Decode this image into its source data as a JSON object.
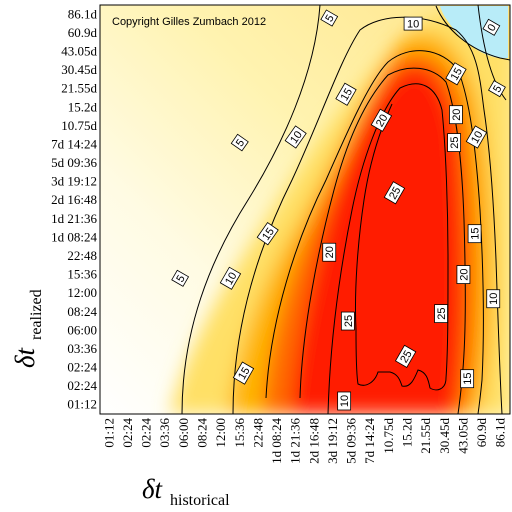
{
  "chart_data": {
    "type": "contour",
    "copyright": "Copyright Gilles Zumbach 2012",
    "x_label": {
      "symbol": "δt",
      "subscript": "historical"
    },
    "y_label": {
      "symbol": "δt",
      "subscript": "realized"
    },
    "x_ticks": [
      "01:12",
      "02:24",
      "02:24",
      "03:36",
      "06:00",
      "08:24",
      "12:00",
      "15:36",
      "22:48",
      "1d 08:24",
      "1d 21:36",
      "2d 16:48",
      "3d 19:12",
      "5d 09:36",
      "7d 14:24",
      "10.75d",
      "15.2d",
      "21.55d",
      "30.45d",
      "43.05d",
      "60.9d",
      "86.1d"
    ],
    "y_ticks": [
      "86.1d",
      "60.9d",
      "43.05d",
      "30.45d",
      "21.55d",
      "15.2d",
      "10.75d",
      "7d 14:24",
      "5d 09:36",
      "3d 19:12",
      "2d 16:48",
      "1d 21:36",
      "1d 08:24",
      "22:48",
      "15:36",
      "12:00",
      "08:24",
      "06:00",
      "03:36",
      "02:24",
      "02:24",
      "01:12"
    ],
    "contour_levels": [
      0,
      5,
      10,
      15,
      20,
      25
    ],
    "contour_labels": [
      {
        "level": "0",
        "x": 20.5,
        "y": 0.7,
        "angle": -60
      },
      {
        "level": "5",
        "x": 11.8,
        "y": 0.2,
        "angle": -60
      },
      {
        "level": "5",
        "x": 7.0,
        "y": 6.9,
        "angle": -55
      },
      {
        "level": "5",
        "x": 3.8,
        "y": 14.2,
        "angle": -60
      },
      {
        "level": "5",
        "x": 20.8,
        "y": 4.0,
        "angle": -60
      },
      {
        "level": "10",
        "x": 16.3,
        "y": 0.5,
        "angle": 0
      },
      {
        "level": "10",
        "x": 10.0,
        "y": 6.6,
        "angle": -55
      },
      {
        "level": "10",
        "x": 6.5,
        "y": 14.2,
        "angle": -60
      },
      {
        "level": "10",
        "x": 19.7,
        "y": 6.6,
        "angle": -60
      },
      {
        "level": "10",
        "x": 20.6,
        "y": 15.3,
        "angle": -90
      },
      {
        "level": "10",
        "x": 12.6,
        "y": 20.8,
        "angle": -90
      },
      {
        "level": "15",
        "x": 12.7,
        "y": 4.3,
        "angle": -60
      },
      {
        "level": "15",
        "x": 8.5,
        "y": 11.8,
        "angle": -55
      },
      {
        "level": "15",
        "x": 18.6,
        "y": 3.2,
        "angle": -60
      },
      {
        "level": "15",
        "x": 19.6,
        "y": 11.8,
        "angle": -90
      },
      {
        "level": "15",
        "x": 19.2,
        "y": 19.6,
        "angle": -90
      },
      {
        "level": "15",
        "x": 7.2,
        "y": 19.3,
        "angle": -60
      },
      {
        "level": "20",
        "x": 14.6,
        "y": 5.7,
        "angle": -60
      },
      {
        "level": "20",
        "x": 18.6,
        "y": 5.4,
        "angle": -90
      },
      {
        "level": "20",
        "x": 11.8,
        "y": 12.8,
        "angle": -90
      },
      {
        "level": "20",
        "x": 19.0,
        "y": 14.0,
        "angle": -90
      },
      {
        "level": "25",
        "x": 18.5,
        "y": 6.9,
        "angle": -90
      },
      {
        "level": "25",
        "x": 15.3,
        "y": 9.6,
        "angle": -60
      },
      {
        "level": "25",
        "x": 12.8,
        "y": 16.5,
        "angle": -90
      },
      {
        "level": "25",
        "x": 17.8,
        "y": 16.1,
        "angle": -90
      },
      {
        "level": "25",
        "x": 15.9,
        "y": 18.4,
        "angle": -60
      }
    ],
    "colorscale": [
      "#ffffff",
      "#fff6bf",
      "#ffe060",
      "#ffb000",
      "#ff6a00",
      "#ff1500",
      "#b8ecf8"
    ]
  }
}
